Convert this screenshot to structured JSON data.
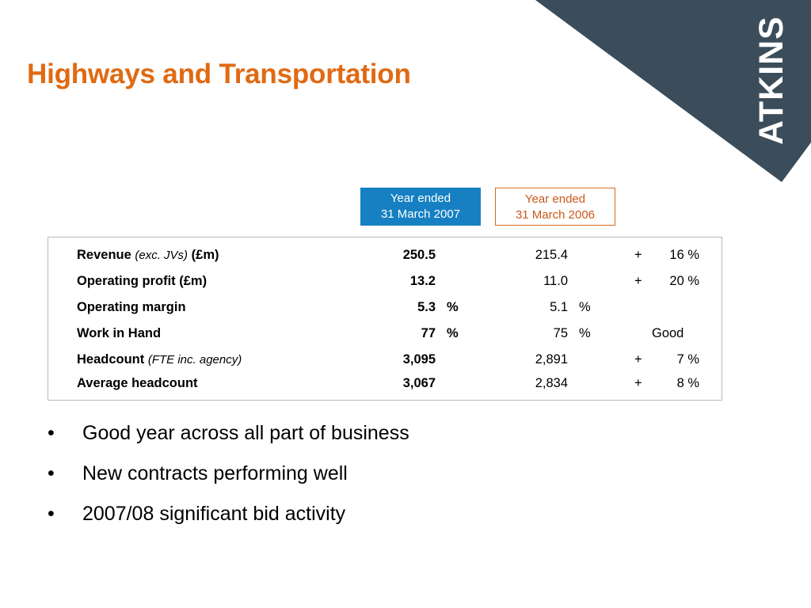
{
  "slide": {
    "title": "Highways and Transportation",
    "logo_text": "ATKINS",
    "colors": {
      "title": "#e06a12",
      "brand_dark": "#3b4d5a",
      "header_2007": "#1680c2",
      "header_2006_border": "#d46a1e"
    }
  },
  "headers": {
    "y2007": {
      "line1": "Year ended",
      "line2": "31 March 2007"
    },
    "y2006": {
      "line1": "Year ended",
      "line2": "31 March 2006"
    }
  },
  "table": {
    "rows": [
      {
        "label": "Revenue",
        "label_note": "(exc. JVs)",
        "label_unit": "(£m)",
        "v2007": "250.5",
        "p2007": "",
        "v2006": "215.4",
        "p2006": "",
        "sign": "+",
        "change": "16 %"
      },
      {
        "label": "Operating profit  (£m)",
        "label_note": "",
        "label_unit": "",
        "v2007": "13.2",
        "p2007": "",
        "v2006": "11.0",
        "p2006": "",
        "sign": "+",
        "change": "20 %"
      },
      {
        "label": "Operating margin",
        "label_note": "",
        "label_unit": "",
        "v2007": "5.3",
        "p2007": "%",
        "v2006": "5.1",
        "p2006": "%",
        "sign": "",
        "change": ""
      },
      {
        "label": "Work in Hand",
        "label_note": "",
        "label_unit": "",
        "v2007": "77",
        "p2007": "%",
        "v2006": "75",
        "p2006": "%",
        "sign": "",
        "change": "",
        "assessment": "Good"
      },
      {
        "label": "Headcount",
        "label_note": "(FTE inc. agency)",
        "label_unit": "",
        "v2007": "3,095",
        "p2007": "",
        "v2006": "2,891",
        "p2006": "",
        "sign": "+",
        "change": "7 %"
      },
      {
        "label": "Average headcount",
        "label_note": "",
        "label_unit": "",
        "v2007": "3,067",
        "p2007": "",
        "v2006": "2,834",
        "p2006": "",
        "sign": "+",
        "change": "8 %"
      }
    ]
  },
  "bullets": {
    "marker": "•",
    "items": [
      "Good year across all part of business",
      "New contracts performing well",
      "2007/08 significant bid activity"
    ]
  }
}
